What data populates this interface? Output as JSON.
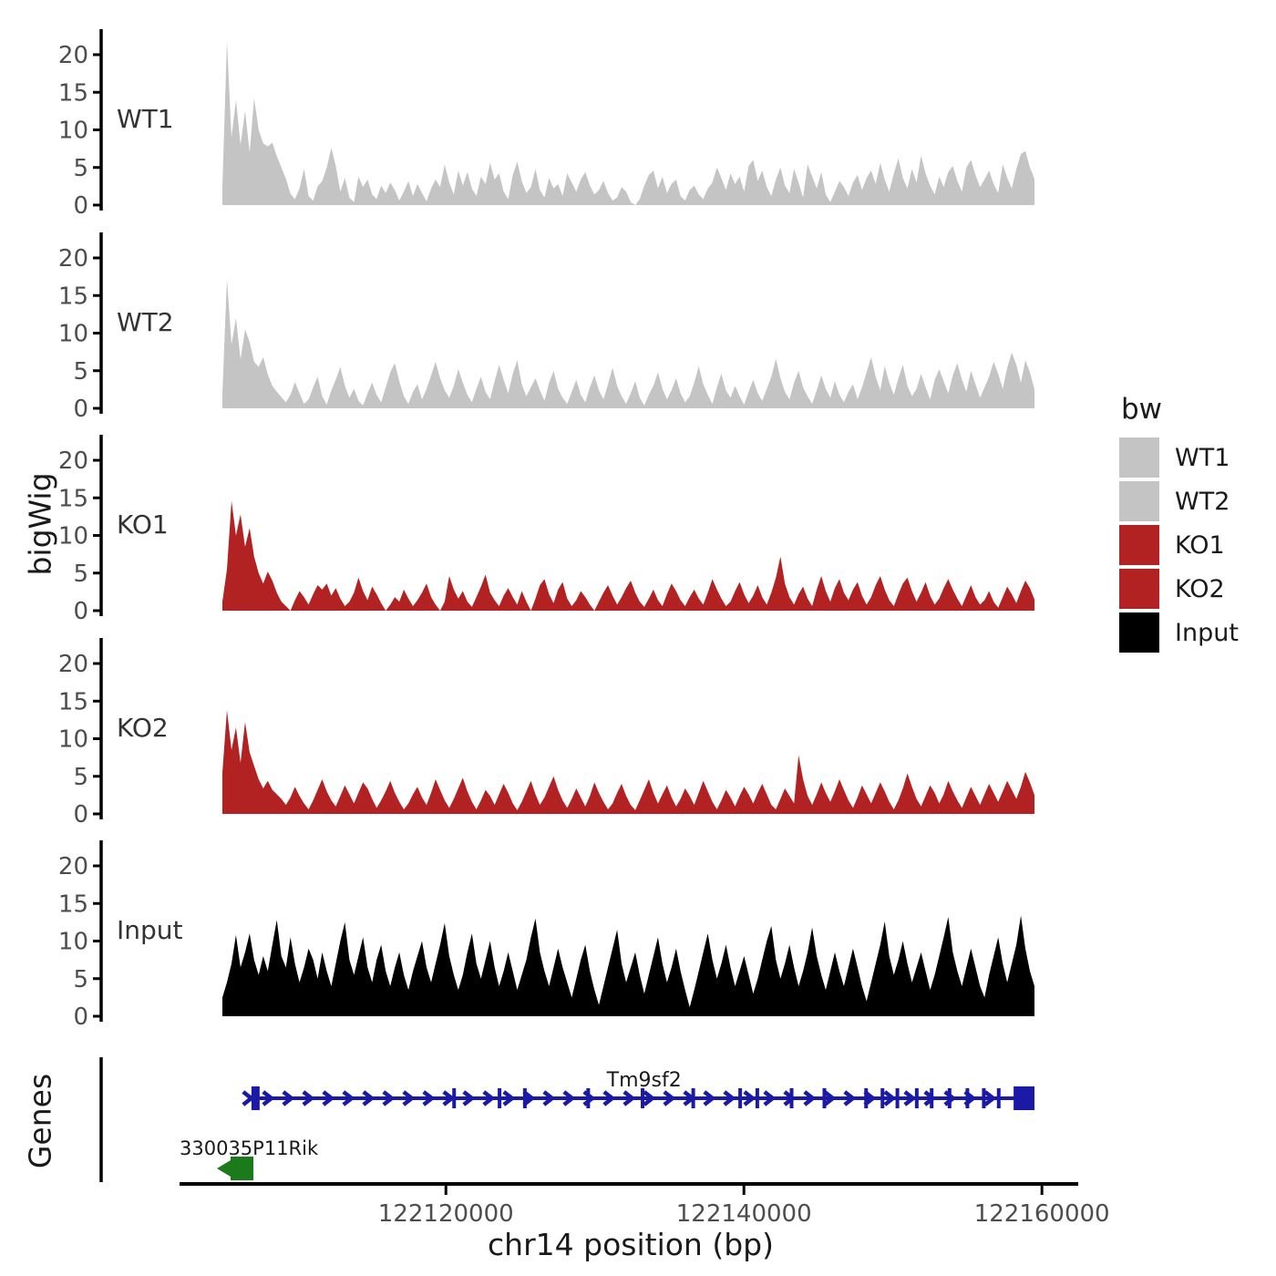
{
  "figure": {
    "background": "#FFFFFF"
  },
  "axes": {
    "y_title_tracks": "bigWig",
    "y_title_genes": "Genes",
    "x_title": "chr14 position (bp)",
    "x_tick_values": [
      122120000,
      122140000,
      122160000
    ],
    "x_tick_labels": [
      "122120000",
      "122140000",
      "122160000"
    ],
    "y_tick_values": [
      0,
      5,
      10,
      15,
      20
    ],
    "y_tick_labels": [
      "0",
      "5",
      "10",
      "15",
      "20"
    ]
  },
  "legend": {
    "title": "bw",
    "entries": [
      {
        "label": "WT1",
        "color": "#C4C4C4"
      },
      {
        "label": "WT2",
        "color": "#C4C4C4"
      },
      {
        "label": "KO1",
        "color": "#B22222"
      },
      {
        "label": "KO2",
        "color": "#B22222"
      },
      {
        "label": "Input",
        "color": "#000000"
      }
    ]
  },
  "chart_data": {
    "type": "area",
    "title": "",
    "xlabel": "chr14 position (bp)",
    "ylabel": "bigWig",
    "region": {
      "chrom": "chr14",
      "start": 122105000,
      "end": 122159500
    },
    "x_ticks": [
      122120000,
      122140000,
      122160000
    ],
    "y_ticks": [
      0,
      5,
      10,
      15,
      20
    ],
    "ylim": [
      0,
      22
    ],
    "grid": false,
    "legend_position": "right",
    "tracks": [
      {
        "name": "WT1",
        "color": "#C4C4C4",
        "values": [
          2.5,
          21.8,
          9,
          14,
          8,
          12.5,
          7,
          14.2,
          10,
          8.2,
          7.8,
          8.3,
          6.5,
          5,
          3.5,
          1.5,
          0.8,
          2.2,
          4.8,
          1.2,
          0.6,
          2.5,
          3.2,
          5,
          7.6,
          5.2,
          1.8,
          3.6,
          1,
          0.4,
          3.8,
          2.4,
          3.4,
          1.4,
          0.8,
          2.6,
          1.6,
          3,
          2,
          0.6,
          1.8,
          3.2,
          1.2,
          2.8,
          1.6,
          0.5,
          2.2,
          3.4,
          2.4,
          5.4,
          3,
          1.4,
          4.6,
          2.6,
          4.4,
          2.2,
          1.2,
          3.8,
          2.8,
          5.6,
          3.4,
          4.2,
          1.8,
          0.8,
          4,
          5.8,
          3.2,
          1.6,
          2.4,
          4.8,
          2,
          1,
          3.6,
          2.2,
          2.8,
          1.2,
          4.2,
          3,
          1.8,
          3.4,
          4.4,
          2.6,
          1.4,
          2,
          3.2,
          1.6,
          0.6,
          1,
          2.4,
          1.8,
          0.4,
          0,
          0.8,
          2.6,
          4,
          4.6,
          2.2,
          3.8,
          1.6,
          2.8,
          3.4,
          1.2,
          0.6,
          2,
          2.6,
          1.4,
          0.8,
          2.2,
          3,
          5,
          3.6,
          2,
          4.2,
          2.8,
          3.8,
          1.8,
          5.2,
          6,
          3.2,
          4.6,
          2.4,
          1.2,
          3.4,
          5,
          2.6,
          1.6,
          4.8,
          3,
          1,
          5.4,
          3.8,
          2.2,
          4.4,
          1.4,
          0.4,
          1.8,
          3.2,
          2.4,
          1.2,
          3,
          4,
          2,
          3.6,
          4.6,
          2.8,
          5.6,
          3.4,
          1.8,
          4.2,
          6.2,
          3.6,
          2.2,
          4.8,
          3,
          6.6,
          4.2,
          2.6,
          1.4,
          3.8,
          2.4,
          4.4,
          5.2,
          3.2,
          1.8,
          5,
          6,
          4,
          2.4,
          3.4,
          4.6,
          2.8,
          1.6,
          5.4,
          3.6,
          2.2,
          4.8,
          6.8,
          7.2,
          5,
          3.5
        ]
      },
      {
        "name": "WT2",
        "color": "#C4C4C4",
        "values": [
          2,
          17.2,
          8.5,
          12,
          6.5,
          10.5,
          8.8,
          6.2,
          5.5,
          6.8,
          4.5,
          3,
          2.2,
          1.5,
          0.8,
          1.8,
          3.5,
          2,
          0.6,
          1.2,
          2.8,
          4.2,
          1.6,
          0.5,
          2.4,
          3.8,
          5.5,
          3,
          1.4,
          2.6,
          1,
          0.4,
          2,
          3.4,
          1.8,
          0.8,
          2.8,
          4.8,
          6,
          3.6,
          1.6,
          0.6,
          2.2,
          3.2,
          1.2,
          2.6,
          4.4,
          6.2,
          4,
          2.4,
          1.4,
          3,
          5.2,
          3.4,
          1.8,
          0.8,
          2.6,
          4.2,
          2.2,
          1.2,
          3.6,
          5.8,
          3.8,
          2,
          4.6,
          6.4,
          3.2,
          1.6,
          2.8,
          4,
          2.4,
          1,
          3.4,
          5,
          2.6,
          1.4,
          0.6,
          2.2,
          3.8,
          1.8,
          0.8,
          2.8,
          4.4,
          2.4,
          1.2,
          3.2,
          5.4,
          3,
          1.6,
          0.6,
          2,
          3.6,
          1.4,
          0.4,
          1.8,
          3,
          4.8,
          2.6,
          1.2,
          2.4,
          4,
          2,
          0.8,
          1.6,
          3.4,
          5.6,
          3.2,
          1.8,
          0.6,
          2.8,
          4.6,
          2.4,
          1.4,
          3,
          1.6,
          0.5,
          2.2,
          3.8,
          2,
          1,
          2.6,
          4.2,
          6.6,
          4,
          2.2,
          1.2,
          3.4,
          5,
          2.8,
          1.6,
          0.6,
          2.4,
          4.4,
          2.6,
          1.4,
          3.6,
          1.8,
          0.8,
          2.2,
          3.2,
          1.2,
          2.8,
          4.8,
          6.8,
          4.2,
          2.4,
          5.6,
          3.4,
          1.8,
          4,
          5.8,
          3,
          1.6,
          2.6,
          4.6,
          2.8,
          1.2,
          3.8,
          5.2,
          3.6,
          2,
          4.4,
          6,
          3.8,
          2.2,
          5,
          3.2,
          1.4,
          2.8,
          4.2,
          6.2,
          4.6,
          2.6,
          5.4,
          7.4,
          5.8,
          3.4,
          6.4,
          4.8,
          2.5
        ]
      },
      {
        "name": "KO1",
        "color": "#B22222",
        "values": [
          1.2,
          5.5,
          14.6,
          10,
          12.8,
          8.5,
          11,
          7.2,
          5,
          3.6,
          5.2,
          4,
          2.4,
          1.2,
          0.6,
          0,
          1.4,
          2.6,
          1.8,
          0.8,
          2.2,
          3.4,
          2.8,
          3.6,
          2,
          3,
          1.6,
          0.6,
          1.2,
          2.4,
          4.4,
          2.6,
          1.4,
          3.2,
          2.2,
          1,
          0,
          0.8,
          1.8,
          1.2,
          2.8,
          1.6,
          0.6,
          1.4,
          2.4,
          3.6,
          1.8,
          0.8,
          0,
          1.2,
          4.6,
          2.8,
          1.6,
          2.6,
          1.2,
          0.5,
          1.8,
          3.2,
          4.8,
          2.4,
          1.4,
          0.6,
          2,
          3,
          1.8,
          0.8,
          2.6,
          1.2,
          0,
          1.6,
          3.4,
          4.2,
          2.2,
          1,
          2.8,
          3.8,
          1.6,
          0.6,
          1.4,
          2.6,
          1.8,
          0.8,
          0,
          1.2,
          2.4,
          3.4,
          2,
          0.8,
          1.8,
          3,
          4,
          2.4,
          1.2,
          0.5,
          1.6,
          2.8,
          1.4,
          0.6,
          2.2,
          3.6,
          2.6,
          1.4,
          0.6,
          1.8,
          2.8,
          1.6,
          0.8,
          2.4,
          4.2,
          2.8,
          1.6,
          0.6,
          1.2,
          2.6,
          3.8,
          2.2,
          1,
          2,
          3.4,
          1.8,
          0.8,
          2.4,
          4.4,
          7.2,
          3.6,
          1.8,
          0.8,
          2.2,
          3.2,
          1.6,
          0.6,
          2.8,
          4.6,
          2.6,
          1.2,
          3,
          4.2,
          2.4,
          1.4,
          2.8,
          3.8,
          2,
          0.8,
          1.8,
          3.4,
          4.6,
          2.8,
          1.4,
          0.6,
          2.2,
          3.6,
          4.4,
          2.6,
          1.2,
          2.4,
          3.8,
          2,
          0.8,
          1.6,
          3,
          4.2,
          2.8,
          1.6,
          0.6,
          2,
          3.4,
          1.8,
          0.8,
          1.4,
          2.6,
          1.2,
          0.4,
          1.8,
          3.2,
          2.2,
          1,
          2.6,
          4,
          3,
          1.5
        ]
      },
      {
        "name": "KO2",
        "color": "#B22222",
        "values": [
          5.5,
          13.8,
          8.5,
          11.5,
          6.8,
          12.2,
          8.2,
          6.4,
          4.6,
          3.4,
          4.4,
          3.2,
          2.6,
          2,
          1.2,
          2.2,
          3.6,
          2.4,
          1.4,
          0.6,
          1.8,
          3.2,
          4.6,
          3,
          1.8,
          1,
          2.4,
          3.8,
          2.6,
          1.4,
          2.8,
          4.2,
          3.4,
          2,
          0.8,
          1.8,
          3,
          4.4,
          2.8,
          1.6,
          0.6,
          1.4,
          2.6,
          3.6,
          2.2,
          1.2,
          2.8,
          4.6,
          3.2,
          1.8,
          0.8,
          2,
          3.4,
          4.8,
          3,
          1.6,
          0.6,
          1.8,
          3.2,
          2.4,
          1.2,
          2.6,
          4,
          2.8,
          1.4,
          0.5,
          1.6,
          3,
          4.4,
          2.6,
          1.2,
          2.2,
          3.6,
          5,
          3.2,
          1.8,
          0.8,
          2,
          3.4,
          2.2,
          1,
          2.4,
          4.2,
          2.8,
          1.6,
          0.6,
          1.4,
          2.8,
          4,
          2.4,
          1.2,
          0.5,
          1.8,
          3.2,
          4.6,
          2.8,
          1.4,
          2.6,
          3.8,
          2.2,
          1,
          2,
          3.4,
          2.4,
          1.2,
          2.8,
          4.4,
          3,
          1.6,
          0.6,
          1.8,
          3.2,
          2.2,
          1,
          2.4,
          3.6,
          2.6,
          1.4,
          2.8,
          4,
          2.6,
          1.2,
          0.6,
          2,
          3.4,
          2.4,
          1.4,
          7.8,
          4.6,
          2.4,
          1.2,
          2.6,
          4.2,
          2.8,
          1.6,
          3,
          4.6,
          3.2,
          1.8,
          0.8,
          2.2,
          3.8,
          2.6,
          1.4,
          2.8,
          4.2,
          3,
          1.6,
          0.6,
          1.8,
          3.4,
          5.4,
          3.6,
          2,
          1,
          2.4,
          3.8,
          2.8,
          1.4,
          2.6,
          4.4,
          3,
          1.8,
          0.8,
          2.2,
          3.6,
          2.4,
          1.2,
          2.6,
          4,
          2.8,
          1.6,
          3,
          4.4,
          3.2,
          2,
          3.6,
          5.6,
          4.2,
          2.5
        ]
      },
      {
        "name": "Input",
        "color": "#000000",
        "values": [
          2.5,
          4.5,
          7,
          10.8,
          6.5,
          8.5,
          11,
          7.5,
          5.5,
          8,
          6,
          9.5,
          12.8,
          8,
          6.5,
          10.5,
          7,
          4.5,
          6.5,
          9,
          7.5,
          5,
          8.5,
          6,
          4,
          7,
          10,
          12.5,
          7.5,
          5.5,
          8,
          10.5,
          6.5,
          4.5,
          7.5,
          9.5,
          6,
          4,
          6.5,
          8.5,
          5.5,
          3.5,
          6,
          8,
          10,
          6.5,
          4.5,
          7,
          9.5,
          12.4,
          8,
          5.5,
          3.5,
          5.5,
          8.5,
          11,
          7,
          5,
          7.5,
          10,
          6.5,
          4,
          6,
          8.5,
          6,
          3.5,
          5.5,
          7.5,
          10.5,
          13,
          8.5,
          6,
          4,
          6.5,
          9,
          6.5,
          4.5,
          2.5,
          5,
          7.5,
          9.5,
          6,
          3.5,
          1.5,
          4,
          6.5,
          9,
          11.5,
          7,
          4.5,
          6.5,
          8.5,
          5.5,
          3,
          5.5,
          8,
          10.5,
          7,
          4.5,
          6.5,
          9,
          6,
          3.5,
          1.2,
          3.5,
          6,
          8.5,
          11,
          7.5,
          5,
          7,
          9.5,
          6.5,
          4,
          6,
          8,
          5.5,
          3,
          5,
          7.5,
          10,
          12,
          7.5,
          5,
          7,
          9.5,
          6.5,
          4,
          6,
          8.5,
          11.8,
          8,
          5.5,
          3.5,
          6,
          8.5,
          6,
          4,
          6.5,
          9,
          6.5,
          4,
          2,
          4.5,
          7,
          9.5,
          12.6,
          8,
          5.5,
          7.5,
          10,
          7,
          4.5,
          6.5,
          8.5,
          6,
          3.5,
          5.5,
          8,
          10.5,
          13.2,
          8.5,
          6,
          4,
          6.5,
          9,
          6.5,
          4,
          2.5,
          5.5,
          8,
          10.5,
          7,
          4.5,
          7,
          9.5,
          13.4,
          9,
          6,
          4
        ]
      }
    ],
    "genes": [
      {
        "name": "Tm9sf2",
        "label": "Tm9sf2",
        "strand": "+",
        "row": 0,
        "color": "#1A1AA6",
        "start": 122106700,
        "end": 122159500,
        "label_at": 122133300,
        "blocks": [
          [
            122106950,
            122107500
          ],
          [
            122158100,
            122159500
          ]
        ],
        "exon_marks": [
          122120550,
          122123600,
          122125300,
          122129550,
          122133200,
          122136600,
          122139750,
          122140900,
          122143200,
          122145400,
          122148200,
          122149300,
          122150300,
          122151600,
          122152600,
          122153800,
          122155000,
          122156100,
          122157100
        ]
      },
      {
        "name": "330035P11Rik",
        "label": "330035P11Rik",
        "strand": "-",
        "row": 1,
        "color": "#1B7B1B",
        "start": 122105000,
        "end": 122107080,
        "label_align": "panel-left",
        "blocks": [
          [
            122105550,
            122107080
          ]
        ],
        "exon_marks": []
      }
    ]
  }
}
